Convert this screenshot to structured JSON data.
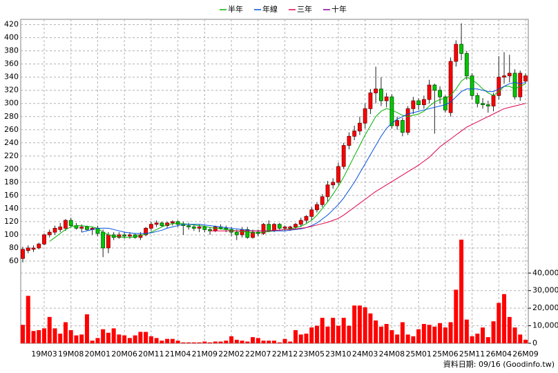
{
  "chart_data": {
    "type": "candlestick",
    "categories": [
      null,
      null,
      null,
      null,
      "19M03",
      null,
      null,
      null,
      null,
      "19M08",
      null,
      null,
      null,
      null,
      "20M01",
      null,
      null,
      null,
      null,
      "20M06",
      null,
      null,
      null,
      null,
      "20M11",
      null,
      null,
      null,
      null,
      "21M04",
      null,
      null,
      null,
      null,
      "21M09",
      null,
      null,
      null,
      null,
      "22M02",
      null,
      null,
      null,
      null,
      "22M07",
      null,
      null,
      null,
      null,
      "22M12",
      null,
      null,
      null,
      null,
      "23M05",
      null,
      null,
      null,
      null,
      "23M10",
      null,
      null,
      null,
      null,
      "24M03",
      null,
      null,
      null,
      null,
      "24M08",
      null,
      null,
      null,
      null,
      "25M01",
      null,
      null,
      null,
      null,
      "25M06",
      null,
      null,
      null,
      null,
      "25M11",
      null,
      null,
      null,
      null,
      "26M04",
      null,
      null,
      null,
      null,
      "26M09"
    ],
    "open": [
      64,
      76,
      78,
      80,
      86,
      100,
      104,
      108,
      110,
      122,
      114,
      110,
      112,
      108,
      110,
      104,
      80,
      100,
      96,
      100,
      98,
      100,
      96,
      100,
      110,
      116,
      118,
      114,
      118,
      120,
      116,
      114,
      112,
      110,
      112,
      108,
      106,
      112,
      110,
      108,
      104,
      100,
      108,
      96,
      104,
      102,
      116,
      106,
      116,
      110,
      110,
      112,
      116,
      122,
      128,
      138,
      146,
      158,
      176,
      180,
      204,
      236,
      250,
      258,
      270,
      292,
      316,
      322,
      304,
      310,
      266,
      274,
      256,
      292,
      304,
      298,
      306,
      328,
      320,
      310,
      286,
      364,
      390,
      376,
      342,
      312,
      300,
      298,
      296,
      312,
      340,
      342,
      346,
      310,
      334
    ],
    "high": [
      82,
      84,
      84,
      88,
      102,
      108,
      114,
      118,
      124,
      126,
      118,
      116,
      114,
      112,
      114,
      108,
      104,
      104,
      104,
      104,
      104,
      102,
      104,
      112,
      120,
      122,
      120,
      120,
      122,
      122,
      120,
      118,
      116,
      116,
      114,
      112,
      114,
      116,
      114,
      112,
      108,
      112,
      112,
      108,
      108,
      118,
      122,
      118,
      118,
      114,
      114,
      118,
      126,
      130,
      142,
      150,
      162,
      182,
      186,
      210,
      240,
      256,
      266,
      280,
      300,
      322,
      356,
      340,
      316,
      314,
      280,
      278,
      296,
      310,
      308,
      312,
      336,
      330,
      326,
      312,
      370,
      396,
      422,
      380,
      346,
      316,
      308,
      304,
      316,
      372,
      378,
      374,
      352,
      350,
      346
    ],
    "low": [
      58,
      72,
      74,
      78,
      84,
      96,
      100,
      104,
      106,
      112,
      108,
      104,
      106,
      100,
      98,
      66,
      72,
      92,
      94,
      94,
      94,
      94,
      92,
      98,
      106,
      112,
      112,
      110,
      114,
      112,
      100,
      108,
      106,
      104,
      104,
      100,
      104,
      108,
      104,
      98,
      92,
      96,
      94,
      94,
      98,
      100,
      104,
      104,
      108,
      106,
      106,
      108,
      112,
      118,
      122,
      134,
      142,
      150,
      170,
      176,
      200,
      230,
      244,
      252,
      262,
      284,
      300,
      296,
      294,
      262,
      260,
      250,
      252,
      284,
      290,
      292,
      300,
      254,
      300,
      286,
      280,
      356,
      366,
      336,
      306,
      294,
      292,
      286,
      288,
      306,
      330,
      332,
      306,
      304,
      330
    ],
    "close": [
      78,
      80,
      80,
      86,
      100,
      104,
      110,
      112,
      122,
      114,
      110,
      112,
      108,
      110,
      102,
      80,
      100,
      96,
      100,
      98,
      100,
      96,
      100,
      110,
      116,
      118,
      114,
      118,
      120,
      116,
      114,
      112,
      110,
      112,
      108,
      106,
      112,
      110,
      108,
      104,
      100,
      108,
      96,
      104,
      102,
      116,
      106,
      116,
      110,
      112,
      112,
      116,
      122,
      128,
      138,
      146,
      158,
      176,
      180,
      204,
      236,
      250,
      258,
      270,
      292,
      316,
      322,
      304,
      310,
      266,
      274,
      256,
      292,
      304,
      298,
      306,
      328,
      320,
      310,
      290,
      364,
      390,
      376,
      342,
      312,
      300,
      298,
      296,
      312,
      340,
      342,
      346,
      310,
      346,
      342
    ],
    "up_color": "#ff0000",
    "down_color": "#00c800",
    "ylim": [
      52,
      428
    ],
    "yticks": [
      60,
      80,
      100,
      120,
      140,
      160,
      180,
      200,
      220,
      240,
      260,
      280,
      300,
      320,
      340,
      360,
      380,
      400,
      420
    ],
    "grid": true,
    "moving_averages": [
      {
        "name": "半年",
        "color": "#00b000",
        "values": [
          null,
          null,
          null,
          null,
          null,
          90,
          96,
          102,
          108,
          112,
          114,
          114,
          113,
          112,
          110,
          104,
          100,
          98,
          97,
          96,
          96,
          97,
          99,
          101,
          104,
          108,
          112,
          115,
          117,
          117,
          117,
          116,
          115,
          114,
          113,
          111,
          110,
          109,
          108,
          107,
          106,
          105,
          104,
          103,
          103,
          104,
          105,
          106,
          107,
          108,
          109,
          111,
          113,
          117,
          122,
          130,
          140,
          150,
          162,
          174,
          188,
          204,
          220,
          236,
          252,
          266,
          280,
          288,
          292,
          290,
          286,
          282,
          280,
          282,
          284,
          288,
          296,
          302,
          306,
          308,
          312,
          322,
          334,
          340,
          336,
          330,
          322,
          316,
          312,
          318,
          326,
          326,
          322,
          326,
          330
        ]
      },
      {
        "name": "年線",
        "color": "#0050e0",
        "values": [
          null,
          null,
          null,
          null,
          null,
          null,
          null,
          null,
          null,
          null,
          null,
          104,
          106,
          108,
          110,
          110,
          110,
          108,
          106,
          104,
          103,
          102,
          102,
          102,
          103,
          105,
          107,
          110,
          112,
          114,
          116,
          116,
          116,
          116,
          115,
          114,
          113,
          112,
          111,
          110,
          109,
          108,
          107,
          106,
          106,
          106,
          106,
          106,
          106,
          106,
          107,
          108,
          109,
          111,
          114,
          118,
          124,
          130,
          138,
          146,
          156,
          168,
          180,
          194,
          208,
          222,
          236,
          250,
          262,
          270,
          276,
          280,
          284,
          286,
          288,
          290,
          292,
          294,
          296,
          298,
          302,
          310,
          318,
          322,
          322,
          322,
          320,
          318,
          318,
          322,
          326,
          330,
          332,
          330,
          332
        ]
      },
      {
        "name": "三年",
        "color": "#e0004c",
        "values": [
          null,
          null,
          null,
          null,
          null,
          null,
          null,
          null,
          null,
          null,
          null,
          null,
          null,
          null,
          null,
          null,
          null,
          null,
          null,
          null,
          null,
          null,
          null,
          null,
          null,
          null,
          null,
          null,
          null,
          null,
          null,
          null,
          null,
          null,
          null,
          106,
          106,
          106,
          106,
          106,
          106,
          106,
          106,
          106,
          106,
          106,
          106,
          107,
          107,
          108,
          108,
          109,
          110,
          111,
          113,
          115,
          117,
          119,
          122,
          125,
          130,
          136,
          142,
          148,
          154,
          160,
          166,
          171,
          176,
          181,
          186,
          191,
          196,
          201,
          206,
          212,
          218,
          226,
          234,
          240,
          246,
          252,
          258,
          264,
          268,
          272,
          276,
          280,
          284,
          288,
          292,
          294,
          296,
          298,
          300
        ]
      },
      {
        "name": "十年",
        "color": "#800090",
        "values": [
          null,
          null,
          null,
          null,
          null,
          null,
          null,
          null,
          null,
          null,
          null,
          null,
          null,
          null,
          null,
          null,
          null,
          null,
          null,
          null,
          null,
          null,
          null,
          null,
          null,
          null,
          null,
          null,
          null,
          null,
          null,
          null,
          null,
          null,
          null,
          null,
          null,
          null,
          null,
          null,
          null,
          null,
          null,
          null,
          null,
          null,
          null,
          null,
          null,
          null,
          null,
          null,
          null,
          null,
          null,
          null,
          null,
          null,
          null,
          null,
          null,
          null,
          null,
          null,
          null,
          null,
          null,
          null,
          null,
          null,
          null,
          null,
          null,
          null,
          null,
          null,
          null,
          null,
          null,
          null,
          null,
          null,
          null,
          null,
          null,
          null,
          null,
          null,
          null,
          null,
          null,
          null,
          null,
          null,
          null
        ]
      }
    ],
    "volume": {
      "color": "#ff0000",
      "values": [
        10500,
        27000,
        7000,
        7500,
        8500,
        15000,
        8500,
        5500,
        12000,
        7500,
        4500,
        5000,
        16500,
        1500,
        3000,
        8000,
        6000,
        8500,
        5000,
        4500,
        3000,
        4500,
        6500,
        6500,
        4000,
        3000,
        1500,
        2500,
        2500,
        1500,
        500,
        500,
        500,
        500,
        1000,
        500,
        1000,
        1000,
        1500,
        4000,
        2000,
        1500,
        1000,
        3500,
        3000,
        1500,
        1500,
        1500,
        500,
        2500,
        1000,
        7500,
        5000,
        5500,
        9000,
        10000,
        14500,
        9500,
        14500,
        10000,
        14500,
        10000,
        21500,
        21500,
        20500,
        17000,
        13000,
        9500,
        11000,
        7500,
        5000,
        12000,
        5000,
        4000,
        8000,
        11000,
        10500,
        9500,
        11500,
        9000,
        12000,
        30500,
        59000,
        13500,
        4000,
        5500,
        9000,
        3500,
        12500,
        23000,
        28000,
        15000,
        9000,
        5000,
        2000
      ],
      "ylim": [
        0,
        46000
      ],
      "yticks": [
        0,
        {
          "value": 10000,
          "label": "10,000"
        },
        {
          "value": 20000,
          "label": "20,000"
        },
        {
          "value": 30000,
          "label": "30,000"
        },
        {
          "value": 40000,
          "label": "40,000"
        }
      ]
    },
    "footnote": "資料日期: 09/16 (Goodinfo.tw)"
  }
}
